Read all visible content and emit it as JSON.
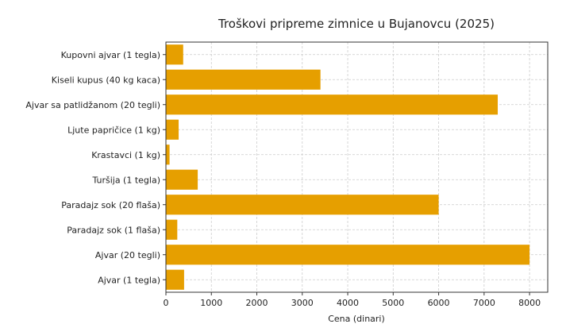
{
  "chart_data": {
    "type": "bar",
    "orientation": "horizontal",
    "title": "Troškovi pripreme zimnice u Bujanovcu (2025)",
    "xlabel": "Cena (dinari)",
    "ylabel": "",
    "xlim": [
      0,
      8400
    ],
    "xticks": [
      0,
      1000,
      2000,
      3000,
      4000,
      5000,
      6000,
      7000,
      8000
    ],
    "grid": true,
    "categories": [
      "Kupovni ajvar (1 tegla)",
      "Kiseli kupus (40 kg kaca)",
      "Ajvar sa patlidžanom (20 tegli)",
      "Ljute papričice (1 kg)",
      "Krastavci (1 kg)",
      "Turšija (1 tegla)",
      "Paradajz sok (20 flaša)",
      "Paradajz sok (1 flaša)",
      "Ajvar (20 tegli)",
      "Ajvar (1 tegla)"
    ],
    "values": [
      380,
      3400,
      7300,
      280,
      80,
      700,
      6000,
      250,
      8000,
      400
    ],
    "bar_color": "#e69f00"
  }
}
